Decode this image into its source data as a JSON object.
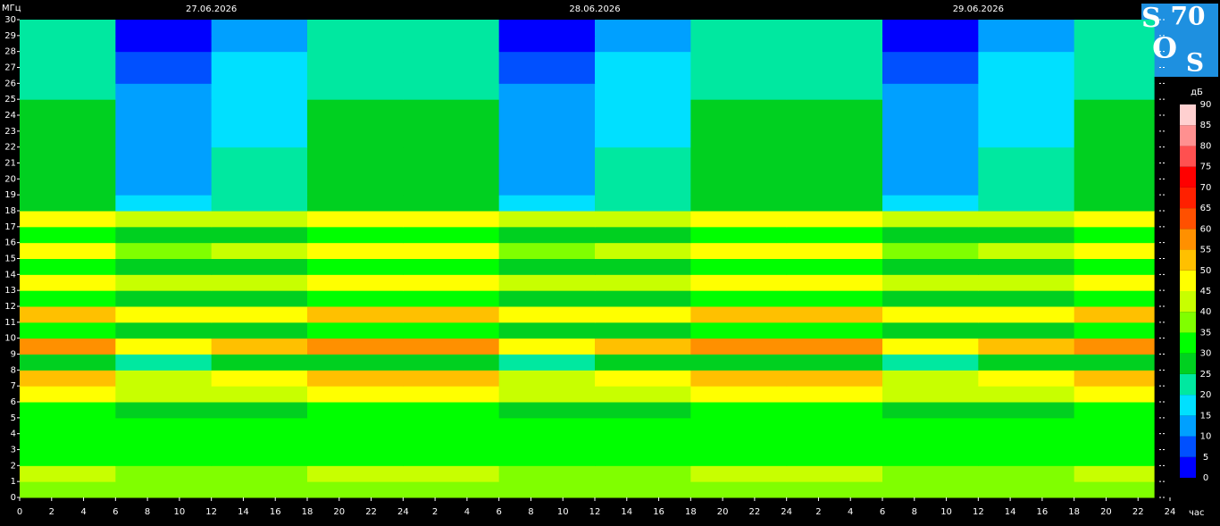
{
  "chart_data": {
    "type": "heatmap",
    "y_label": "МГц",
    "x_label": "час",
    "dates": [
      "27.06.2026",
      "28.06.2026",
      "29.06.2026"
    ],
    "logo": [
      "S",
      "70",
      "O",
      "S"
    ],
    "xlim": [
      0,
      72
    ],
    "ylim": [
      0,
      30
    ],
    "x_bins": [
      0,
      6,
      12,
      18,
      24,
      30,
      36,
      42,
      48,
      54,
      60,
      66,
      71
    ],
    "y_bins": [
      0,
      1,
      2,
      3,
      4,
      5,
      6,
      7,
      8,
      9,
      10,
      11,
      12,
      13,
      14,
      15,
      16,
      17,
      18,
      19,
      20,
      21,
      22,
      23,
      24,
      25,
      26,
      27,
      28,
      29,
      30
    ],
    "xticks": [
      0,
      2,
      4,
      6,
      8,
      10,
      12,
      14,
      16,
      18,
      20,
      22,
      24,
      {
        "value": 26,
        "label": "2"
      },
      {
        "value": 28,
        "label": "4"
      },
      {
        "value": 30,
        "label": "6"
      },
      {
        "value": 32,
        "label": "8"
      },
      {
        "value": 34,
        "label": "10"
      },
      {
        "value": 36,
        "label": "12"
      },
      {
        "value": 38,
        "label": "14"
      },
      {
        "value": 40,
        "label": "16"
      },
      {
        "value": 42,
        "label": "18"
      },
      {
        "value": 44,
        "label": "20"
      },
      {
        "value": 46,
        "label": "22"
      },
      {
        "value": 48,
        "label": "24"
      },
      {
        "value": 50,
        "label": "2"
      },
      {
        "value": 52,
        "label": "4"
      },
      {
        "value": 54,
        "label": "6"
      },
      {
        "value": 56,
        "label": "8"
      },
      {
        "value": 58,
        "label": "10"
      },
      {
        "value": 60,
        "label": "12"
      },
      {
        "value": 62,
        "label": "14"
      },
      {
        "value": 64,
        "label": "16"
      },
      {
        "value": 66,
        "label": "18"
      },
      {
        "value": 68,
        "label": "20"
      },
      {
        "value": 70,
        "label": "22"
      },
      {
        "value": 72,
        "label": "24"
      }
    ],
    "yticks": [
      0,
      1,
      2,
      3,
      4,
      5,
      6,
      7,
      8,
      9,
      10,
      11,
      12,
      13,
      14,
      15,
      16,
      17,
      18,
      19,
      20,
      21,
      22,
      23,
      24,
      25,
      26,
      27,
      28,
      29,
      30
    ],
    "values": [
      [
        38,
        38,
        38,
        38,
        38,
        38,
        38,
        38,
        38,
        38,
        38,
        38
      ],
      [
        40,
        38,
        39,
        40,
        40,
        38,
        39,
        40,
        40,
        38,
        39,
        40
      ],
      [
        33,
        33,
        33,
        33,
        33,
        33,
        33,
        33,
        33,
        33,
        33,
        33
      ],
      [
        32,
        32,
        32,
        32,
        32,
        32,
        32,
        32,
        32,
        32,
        32,
        32
      ],
      [
        30,
        30,
        30,
        30,
        30,
        30,
        30,
        30,
        30,
        30,
        30,
        30
      ],
      [
        30,
        28,
        29,
        30,
        30,
        28,
        29,
        30,
        30,
        28,
        29,
        30
      ],
      [
        48,
        40,
        44,
        48,
        48,
        40,
        44,
        48,
        48,
        40,
        44,
        48
      ],
      [
        50,
        42,
        46,
        50,
        50,
        42,
        46,
        50,
        50,
        42,
        46,
        50
      ],
      [
        28,
        22,
        25,
        28,
        28,
        22,
        25,
        28,
        28,
        22,
        25,
        28
      ],
      [
        55,
        45,
        50,
        55,
        55,
        45,
        50,
        55,
        55,
        45,
        50,
        55
      ],
      [
        32,
        25,
        28,
        32,
        32,
        25,
        28,
        32,
        32,
        25,
        28,
        32
      ],
      [
        50,
        45,
        48,
        50,
        50,
        45,
        48,
        50,
        50,
        45,
        48,
        50
      ],
      [
        32,
        25,
        28,
        32,
        32,
        25,
        28,
        32,
        32,
        25,
        28,
        32
      ],
      [
        48,
        40,
        44,
        48,
        48,
        40,
        44,
        48,
        48,
        40,
        44,
        48
      ],
      [
        30,
        25,
        28,
        30,
        30,
        25,
        28,
        30,
        30,
        25,
        28,
        30
      ],
      [
        45,
        38,
        42,
        45,
        45,
        38,
        42,
        45,
        45,
        38,
        42,
        45
      ],
      [
        32,
        25,
        28,
        32,
        32,
        25,
        28,
        32,
        32,
        25,
        28,
        32
      ],
      [
        48,
        40,
        44,
        48,
        48,
        40,
        44,
        48,
        48,
        40,
        44,
        48
      ],
      [
        28,
        18,
        23,
        28,
        28,
        18,
        23,
        28,
        28,
        18,
        23,
        28
      ],
      [
        27,
        14,
        20,
        27,
        27,
        14,
        20,
        27,
        27,
        14,
        20,
        27
      ],
      [
        27,
        12,
        20,
        27,
        27,
        12,
        20,
        27,
        27,
        12,
        20,
        27
      ],
      [
        26,
        14,
        20,
        26,
        26,
        14,
        20,
        26,
        26,
        14,
        20,
        26
      ],
      [
        25,
        12,
        18,
        25,
        25,
        12,
        18,
        25,
        25,
        12,
        18,
        25
      ],
      [
        25,
        12,
        18,
        25,
        25,
        12,
        18,
        25,
        25,
        12,
        18,
        25
      ],
      [
        25,
        12,
        18,
        25,
        25,
        12,
        18,
        25,
        25,
        12,
        18,
        25
      ],
      [
        24,
        10,
        17,
        24,
        24,
        10,
        17,
        24,
        24,
        10,
        17,
        24
      ],
      [
        24,
        8,
        16,
        24,
        24,
        8,
        16,
        24,
        24,
        8,
        16,
        24
      ],
      [
        24,
        6,
        15,
        24,
        24,
        6,
        15,
        24,
        24,
        6,
        15,
        24
      ],
      [
        23,
        4,
        14,
        23,
        23,
        4,
        14,
        23,
        23,
        4,
        14,
        23
      ],
      [
        23,
        4,
        14,
        23,
        23,
        4,
        14,
        23,
        23,
        4,
        14,
        23
      ]
    ],
    "colorbar": {
      "label": "дБ",
      "lim": [
        0,
        90
      ],
      "ticks": [
        0,
        5,
        10,
        15,
        20,
        25,
        30,
        35,
        40,
        45,
        50,
        55,
        60,
        65,
        70,
        75,
        80,
        85,
        90
      ],
      "colors": [
        "#0000ff",
        "#0050ff",
        "#00a0ff",
        "#00e0ff",
        "#00e8a0",
        "#00d020",
        "#00ff00",
        "#80ff00",
        "#c8ff00",
        "#ffff00",
        "#ffc000",
        "#ff9000",
        "#ff5000",
        "#ff2000",
        "#ff0000",
        "#ff5050",
        "#ff9090",
        "#ffd0d0"
      ]
    }
  }
}
